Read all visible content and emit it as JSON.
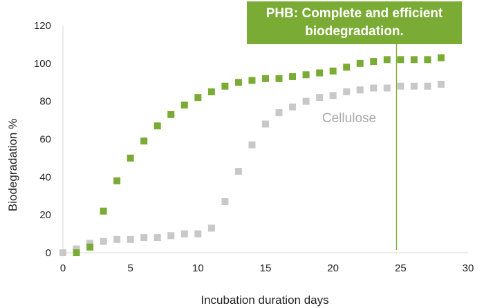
{
  "chart_data": {
    "type": "scatter",
    "title": "",
    "xlabel": "Incubation duration days",
    "ylabel": "Biodegradation  %",
    "xlim": [
      0,
      30
    ],
    "ylim": [
      0,
      120
    ],
    "xticks": [
      0,
      5,
      10,
      15,
      20,
      25,
      30
    ],
    "yticks": [
      0,
      20,
      40,
      60,
      80,
      100,
      120
    ],
    "grid": false,
    "series": [
      {
        "name": "PHB",
        "color": "#7aab35",
        "points": [
          [
            1,
            0
          ],
          [
            2,
            3
          ],
          [
            3,
            22
          ],
          [
            4,
            38
          ],
          [
            5,
            50
          ],
          [
            6,
            59
          ],
          [
            7,
            67
          ],
          [
            8,
            73
          ],
          [
            9,
            78
          ],
          [
            10,
            82
          ],
          [
            11,
            85
          ],
          [
            12,
            88
          ],
          [
            13,
            90
          ],
          [
            14,
            91
          ],
          [
            15,
            92
          ],
          [
            16,
            92
          ],
          [
            17,
            93
          ],
          [
            18,
            94
          ],
          [
            19,
            95
          ],
          [
            20,
            96
          ],
          [
            21,
            98
          ],
          [
            22,
            100
          ],
          [
            23,
            101
          ],
          [
            24,
            102
          ],
          [
            25,
            102
          ],
          [
            26,
            102
          ],
          [
            27,
            102
          ],
          [
            28,
            103
          ]
        ]
      },
      {
        "name": "Cellulose",
        "color": "#c8c8c8",
        "points": [
          [
            0,
            0
          ],
          [
            1,
            2
          ],
          [
            2,
            5
          ],
          [
            3,
            6
          ],
          [
            4,
            7
          ],
          [
            5,
            7
          ],
          [
            6,
            8
          ],
          [
            7,
            8
          ],
          [
            8,
            9
          ],
          [
            9,
            10
          ],
          [
            10,
            10
          ],
          [
            11,
            13
          ],
          [
            12,
            27
          ],
          [
            13,
            43
          ],
          [
            14,
            57
          ],
          [
            15,
            68
          ],
          [
            16,
            74
          ],
          [
            17,
            77
          ],
          [
            18,
            80
          ],
          [
            19,
            82
          ],
          [
            20,
            83
          ],
          [
            21,
            85
          ],
          [
            22,
            86
          ],
          [
            23,
            87
          ],
          [
            24,
            87
          ],
          [
            25,
            88
          ],
          [
            26,
            88
          ],
          [
            27,
            88
          ],
          [
            28,
            89
          ]
        ]
      }
    ],
    "annotations": {
      "series_label": "Cellulose",
      "series_label_color": "#aaaaaa",
      "marker_line_x": 24.7,
      "marker_line_color": "#7aab35",
      "callout_line1": "PHB: Complete and efficient",
      "callout_line2": "biodegradation.",
      "callout_color": "#7aab35"
    }
  }
}
